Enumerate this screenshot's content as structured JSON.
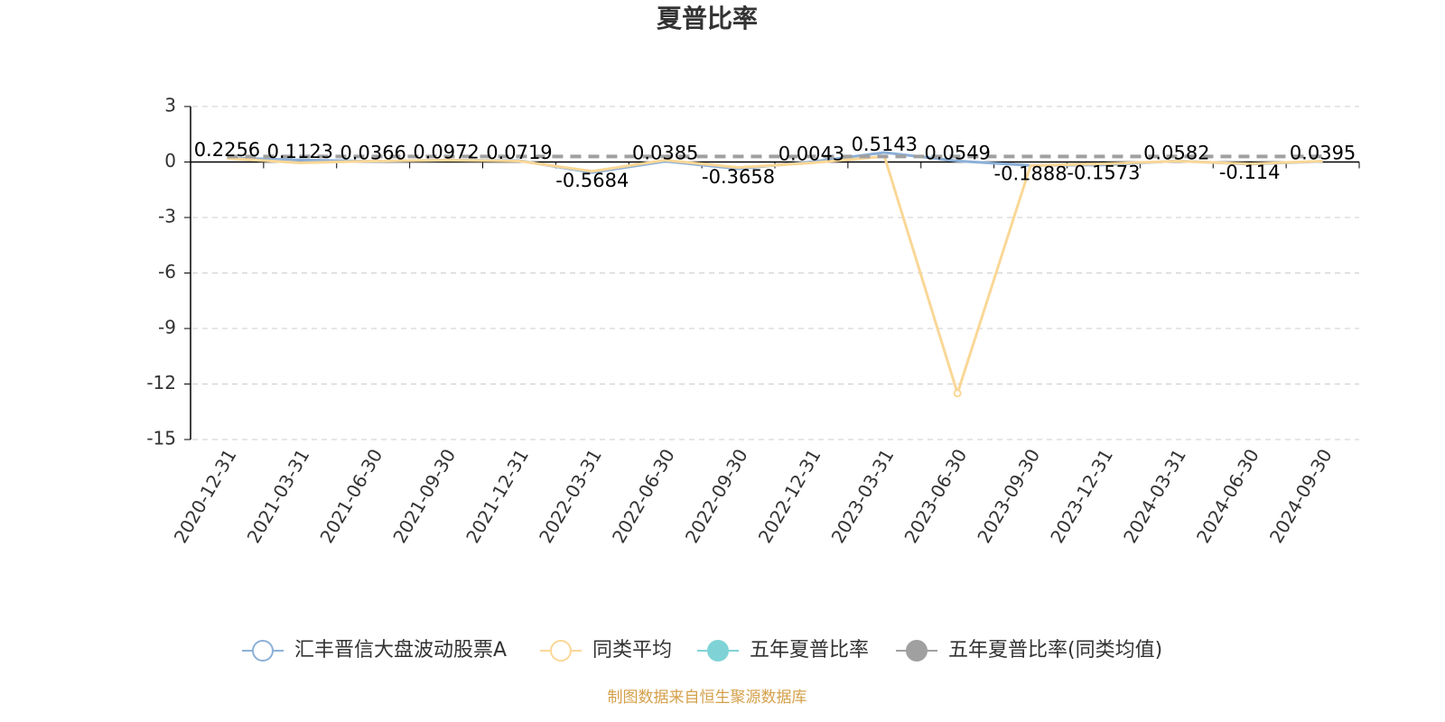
{
  "chart_data": {
    "type": "line",
    "title": "夏普比率",
    "categories": [
      "2020-12-31",
      "2021-03-31",
      "2021-06-30",
      "2021-09-30",
      "2021-12-31",
      "2022-03-31",
      "2022-06-30",
      "2022-09-30",
      "2022-12-31",
      "2023-03-31",
      "2023-06-30",
      "2023-09-30",
      "2023-12-31",
      "2024-03-31",
      "2024-06-30",
      "2024-09-30"
    ],
    "series": [
      {
        "name": "汇丰晋信大盘波动股票A",
        "color": "#8cb0d8",
        "values": [
          0.2256,
          0.1123,
          0.0366,
          0.0972,
          0.0719,
          -0.5684,
          0.0385,
          -0.3658,
          0.0043,
          0.5143,
          0.0549,
          -0.1888,
          -0.1573,
          0.0582,
          -0.114,
          0.0395
        ]
      },
      {
        "name": "同类平均",
        "color": "#fad797",
        "values": [
          0.2,
          -0.05,
          0.05,
          0.1,
          0.05,
          -0.5,
          0.1,
          -0.3,
          -0.05,
          0.3,
          -12.5,
          -0.2,
          -0.1,
          0.05,
          -0.1,
          0.05
        ]
      },
      {
        "name": "五年夏普比率",
        "color": "#7fd3d6",
        "values": [
          null,
          null,
          null,
          null,
          null,
          null,
          null,
          null,
          null,
          null,
          null,
          null,
          null,
          null,
          null,
          null
        ]
      },
      {
        "name": "五年夏普比率(同类均值)",
        "color": "#a0a0a0",
        "values": [
          0.3,
          0.3,
          0.3,
          0.3,
          0.3,
          0.3,
          0.3,
          0.3,
          0.3,
          0.3,
          0.3,
          0.3,
          0.3,
          0.3,
          0.3,
          0.3
        ]
      }
    ],
    "ylim": [
      -15,
      3
    ],
    "yticks": [
      3,
      0,
      -3,
      -6,
      -9,
      -12,
      -15
    ],
    "grid": true,
    "source": "制图数据来自恒生聚源数据库"
  }
}
